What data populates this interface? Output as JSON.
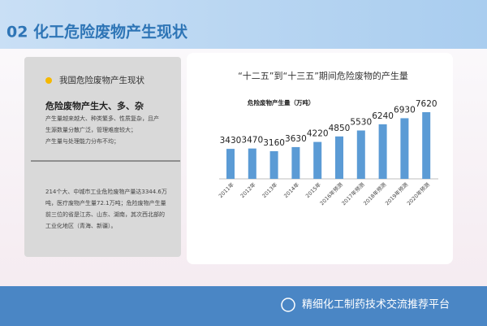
{
  "header": {
    "title": "02 化工危险废物产生现状"
  },
  "left_panel": {
    "heading": "我国危险废物产生现状",
    "subheading": "危险废物产生大、多、杂",
    "lines": [
      "产生量越来越大、种类繁多、性质复杂，且产",
      "生源数量分散广泛，管理难度较大；",
      "产生量与处理能力分布不均；"
    ],
    "paragraph": [
      "214个大、中城市工业危险废物产量达3344.6万",
      "吨，医疗废物产生量72.1万吨；危险废物产生量",
      "前三位的省是江苏、山东、湖南，其次西北部的",
      "工业化地区（青海、新疆）。"
    ]
  },
  "footer": {
    "text": "精细化工制药技术交流推荐平台"
  },
  "chart_data": {
    "type": "bar",
    "title": "“十二五”到“十三五”期间危险废物的产生量",
    "y_label": "危险废物产生量（万吨）",
    "categories": [
      "2011年",
      "2012年",
      "2013年",
      "2014年",
      "2015年",
      "2016年预测",
      "2017年预测",
      "2018年预测",
      "2019年预测",
      "2020年预测"
    ],
    "values": [
      3430,
      3470,
      3160,
      3630,
      4220,
      4850,
      5530,
      6240,
      6930,
      7620
    ],
    "color": "#5b9bd5"
  }
}
